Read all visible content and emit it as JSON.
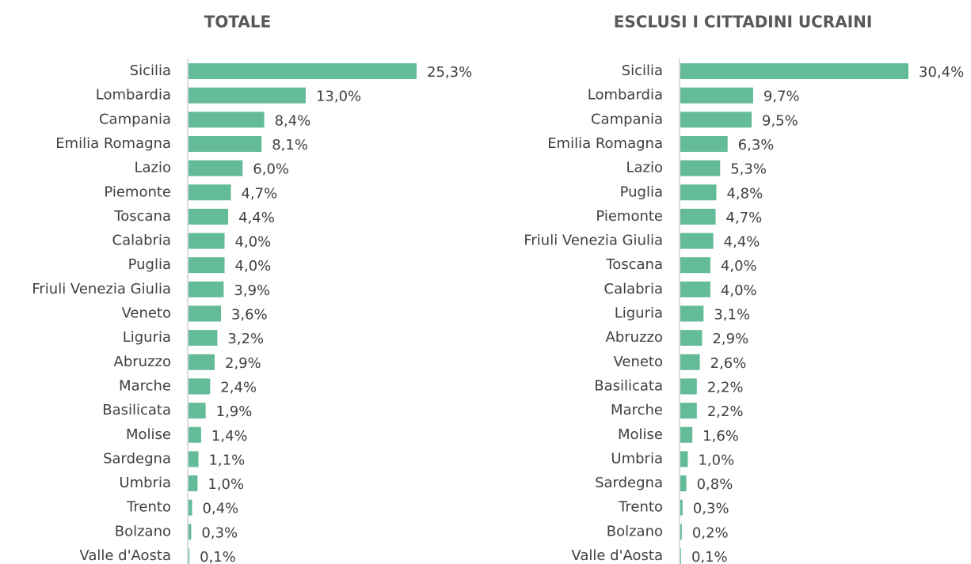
{
  "chart_data": [
    {
      "type": "bar",
      "orientation": "horizontal",
      "title": "TOTALE",
      "color": "#63bb98",
      "categories": [
        "Sicilia",
        "Lombardia",
        "Campania",
        "Emilia Romagna",
        "Lazio",
        "Piemonte",
        "Toscana",
        "Calabria",
        "Puglia",
        "Friuli Venezia Giulia",
        "Veneto",
        "Liguria",
        "Abruzzo",
        "Marche",
        "Basilicata",
        "Molise",
        "Sardegna",
        "Umbria",
        "Trento",
        "Bolzano",
        "Valle d'Aosta"
      ],
      "values": [
        25.3,
        13.0,
        8.4,
        8.1,
        6.0,
        4.7,
        4.4,
        4.0,
        4.0,
        3.9,
        3.6,
        3.2,
        2.9,
        2.4,
        1.9,
        1.4,
        1.1,
        1.0,
        0.4,
        0.3,
        0.1
      ],
      "value_labels": [
        "25,3%",
        "13,0%",
        "8,4%",
        "8,1%",
        "6,0%",
        "4,7%",
        "4,4%",
        "4,0%",
        "4,0%",
        "3,9%",
        "3,6%",
        "3,2%",
        "2,9%",
        "2,4%",
        "1,9%",
        "1,4%",
        "1,1%",
        "1,0%",
        "0,4%",
        "0,3%",
        "0,1%"
      ]
    },
    {
      "type": "bar",
      "orientation": "horizontal",
      "title": "ESCLUSI I CITTADINI UCRAINI",
      "color": "#63bb98",
      "categories": [
        "Sicilia",
        "Lombardia",
        "Campania",
        "Emilia Romagna",
        "Lazio",
        "Puglia",
        "Piemonte",
        "Friuli Venezia Giulia",
        "Toscana",
        "Calabria",
        "Liguria",
        "Abruzzo",
        "Veneto",
        "Basilicata",
        "Marche",
        "Molise",
        "Umbria",
        "Sardegna",
        "Trento",
        "Bolzano",
        "Valle d'Aosta"
      ],
      "values": [
        30.4,
        9.7,
        9.5,
        6.3,
        5.3,
        4.8,
        4.7,
        4.4,
        4.0,
        4.0,
        3.1,
        2.9,
        2.6,
        2.2,
        2.2,
        1.6,
        1.0,
        0.8,
        0.3,
        0.2,
        0.1
      ],
      "value_labels": [
        "30,4%",
        "9,7%",
        "9,5%",
        "6,3%",
        "5,3%",
        "4,8%",
        "4,7%",
        "4,4%",
        "4,0%",
        "4,0%",
        "3,1%",
        "2,9%",
        "2,6%",
        "2,2%",
        "2,2%",
        "1,6%",
        "1,0%",
        "0,8%",
        "0,3%",
        "0,2%",
        "0,1%"
      ]
    }
  ]
}
